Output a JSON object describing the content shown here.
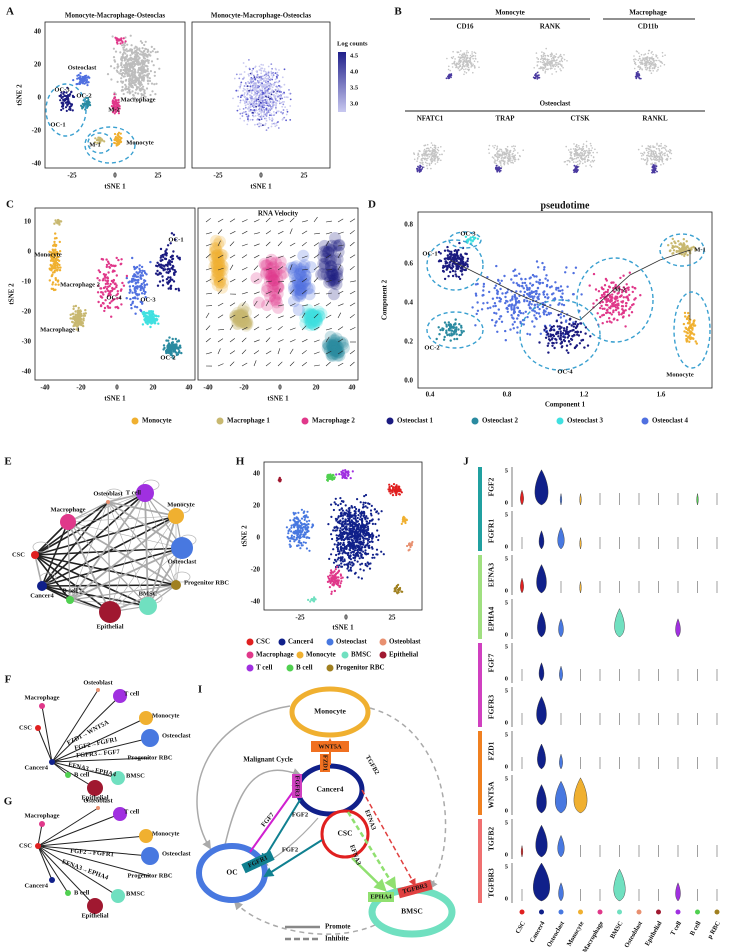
{
  "figure": {
    "panel_a": {
      "letter": "A",
      "titles": [
        "Monocyte-Macrophage-Osteoclas",
        "Monocyte-Macrophage-Osteoclas"
      ],
      "y_label": "tSNE 2",
      "x_label": "tSNE 1",
      "yticks": [
        "40",
        "20",
        "0",
        "-20",
        "-40"
      ],
      "xticks": [
        "-25",
        "0",
        "25"
      ],
      "colorbar_title": "Log counts",
      "colorbar_ticks": [
        "4.5",
        "4.0",
        "3.5",
        "3.0"
      ],
      "annotations": [
        "Osteoclast",
        "OC-3",
        "OC-2",
        "OC-1",
        "Macrophage",
        "M-2",
        "M-1",
        "Monocyte"
      ]
    },
    "panel_b": {
      "letter": "B",
      "groups": [
        {
          "name": "Monocyte",
          "genes": [
            "CD16",
            "RANK"
          ]
        },
        {
          "name": "Macrophage",
          "genes": [
            "CD11b"
          ]
        },
        {
          "name": "Osteoclast",
          "genes": [
            "NFATC1",
            "TRAP",
            "CTSK",
            "RANKL"
          ]
        }
      ]
    },
    "panel_c": {
      "letter": "C",
      "title": "RNA Velocity",
      "y_label": "tSNE 2",
      "x_label": "tSNE 1",
      "yticks": [
        "10",
        "0",
        "-10",
        "-20",
        "-30",
        "-40"
      ],
      "xticks": [
        "-40",
        "-20",
        "0",
        "20",
        "40"
      ],
      "annotations": [
        "Monocyte",
        "Macrophage 2",
        "Macrophage 1",
        "OC-1",
        "OC-4",
        "OC-3",
        "OC-2"
      ]
    },
    "panel_d": {
      "letter": "D",
      "title": "pseudotime",
      "y_label": "Component 2",
      "x_label": "Component 1",
      "yticks": [
        "0.8",
        "0.6",
        "0.4",
        "0.2",
        "0.0"
      ],
      "xticks": [
        "0.4",
        "0.8",
        "1.2",
        "1.6"
      ],
      "annotations": [
        "OC-3",
        "OC-1",
        "M-2",
        "M-1",
        "OC-2",
        "OC-4",
        "Monocyte"
      ]
    },
    "cluster_legend": [
      {
        "label": "Monocyte",
        "color": "#f0b030"
      },
      {
        "label": "Macrophage 1",
        "color": "#c8b870"
      },
      {
        "label": "Macrophage 2",
        "color": "#e0388a"
      },
      {
        "label": "Osteoclast 1",
        "color": "#1a1a80"
      },
      {
        "label": "Osteoclast 2",
        "color": "#2a8aa0"
      },
      {
        "label": "Osteoclast 3",
        "color": "#40e0e0"
      },
      {
        "label": "Osteoclast 4",
        "color": "#5070e0"
      }
    ],
    "cell_types": [
      {
        "label": "CSC",
        "color": "#e02020"
      },
      {
        "label": "Cancer4",
        "color": "#10208a"
      },
      {
        "label": "Osteoclast",
        "color": "#4878e0"
      },
      {
        "label": "Osteoblast",
        "color": "#e89070"
      },
      {
        "label": "Macrophage",
        "color": "#e0388a"
      },
      {
        "label": "Monocyte",
        "color": "#f0b030"
      },
      {
        "label": "BMSC",
        "color": "#70e0c0"
      },
      {
        "label": "Epithelial",
        "color": "#a01830"
      },
      {
        "label": "T cell",
        "color": "#a030e0"
      },
      {
        "label": "B cell",
        "color": "#50d050"
      },
      {
        "label": "Progenitor RBC",
        "color": "#a08020"
      }
    ],
    "panel_e": {
      "letter": "E"
    },
    "panel_f": {
      "letter": "F",
      "edge_labels": [
        "FZD1→WNT5A",
        "FGF2→FGFR1",
        "FGFR3←FGF7",
        "EFNA3→EPHA4"
      ]
    },
    "panel_g": {
      "letter": "G",
      "edge_labels": [
        "FGF2→FGFR1",
        "EFNA3→EPHA4"
      ]
    },
    "panel_h": {
      "letter": "H",
      "y_label": "tSNE 2",
      "x_label": "tSNE 1",
      "yticks": [
        "40",
        "20",
        "0",
        "-20",
        "-40"
      ],
      "xticks": [
        "-25",
        "0",
        "25"
      ]
    },
    "panel_i": {
      "letter": "I",
      "nodes": [
        "Monocyte",
        "Cancer4",
        "CSC",
        "OC",
        "BMSC"
      ],
      "genes": [
        "WNT5A",
        "FZD1",
        "FGFR3",
        "FGF7",
        "FGF2",
        "FGF2",
        "FGFR1",
        "EFNA3",
        "EFNA3",
        "EPHA4",
        "TGFB2",
        "TGFBR3"
      ],
      "cycle": "Malignant Cycle",
      "legend": [
        "Promote",
        "Inhibite"
      ]
    },
    "panel_j": {
      "letter": "J",
      "genes": [
        "FGF2",
        "FGFR1",
        "EFNA3",
        "EPHA4",
        "FGF7",
        "FGFR3",
        "FZD1",
        "WNT5A",
        "TGFB2",
        "TGFBR3"
      ],
      "yticks": [
        "5",
        "0"
      ],
      "cells": [
        "CSC",
        "Cancer4",
        "Osteoclast",
        "Monocyte",
        "Macrophage",
        "BMSC",
        "Osteoblast",
        "Epithelial",
        "T cell",
        "B cell",
        "p RBC"
      ]
    }
  }
}
